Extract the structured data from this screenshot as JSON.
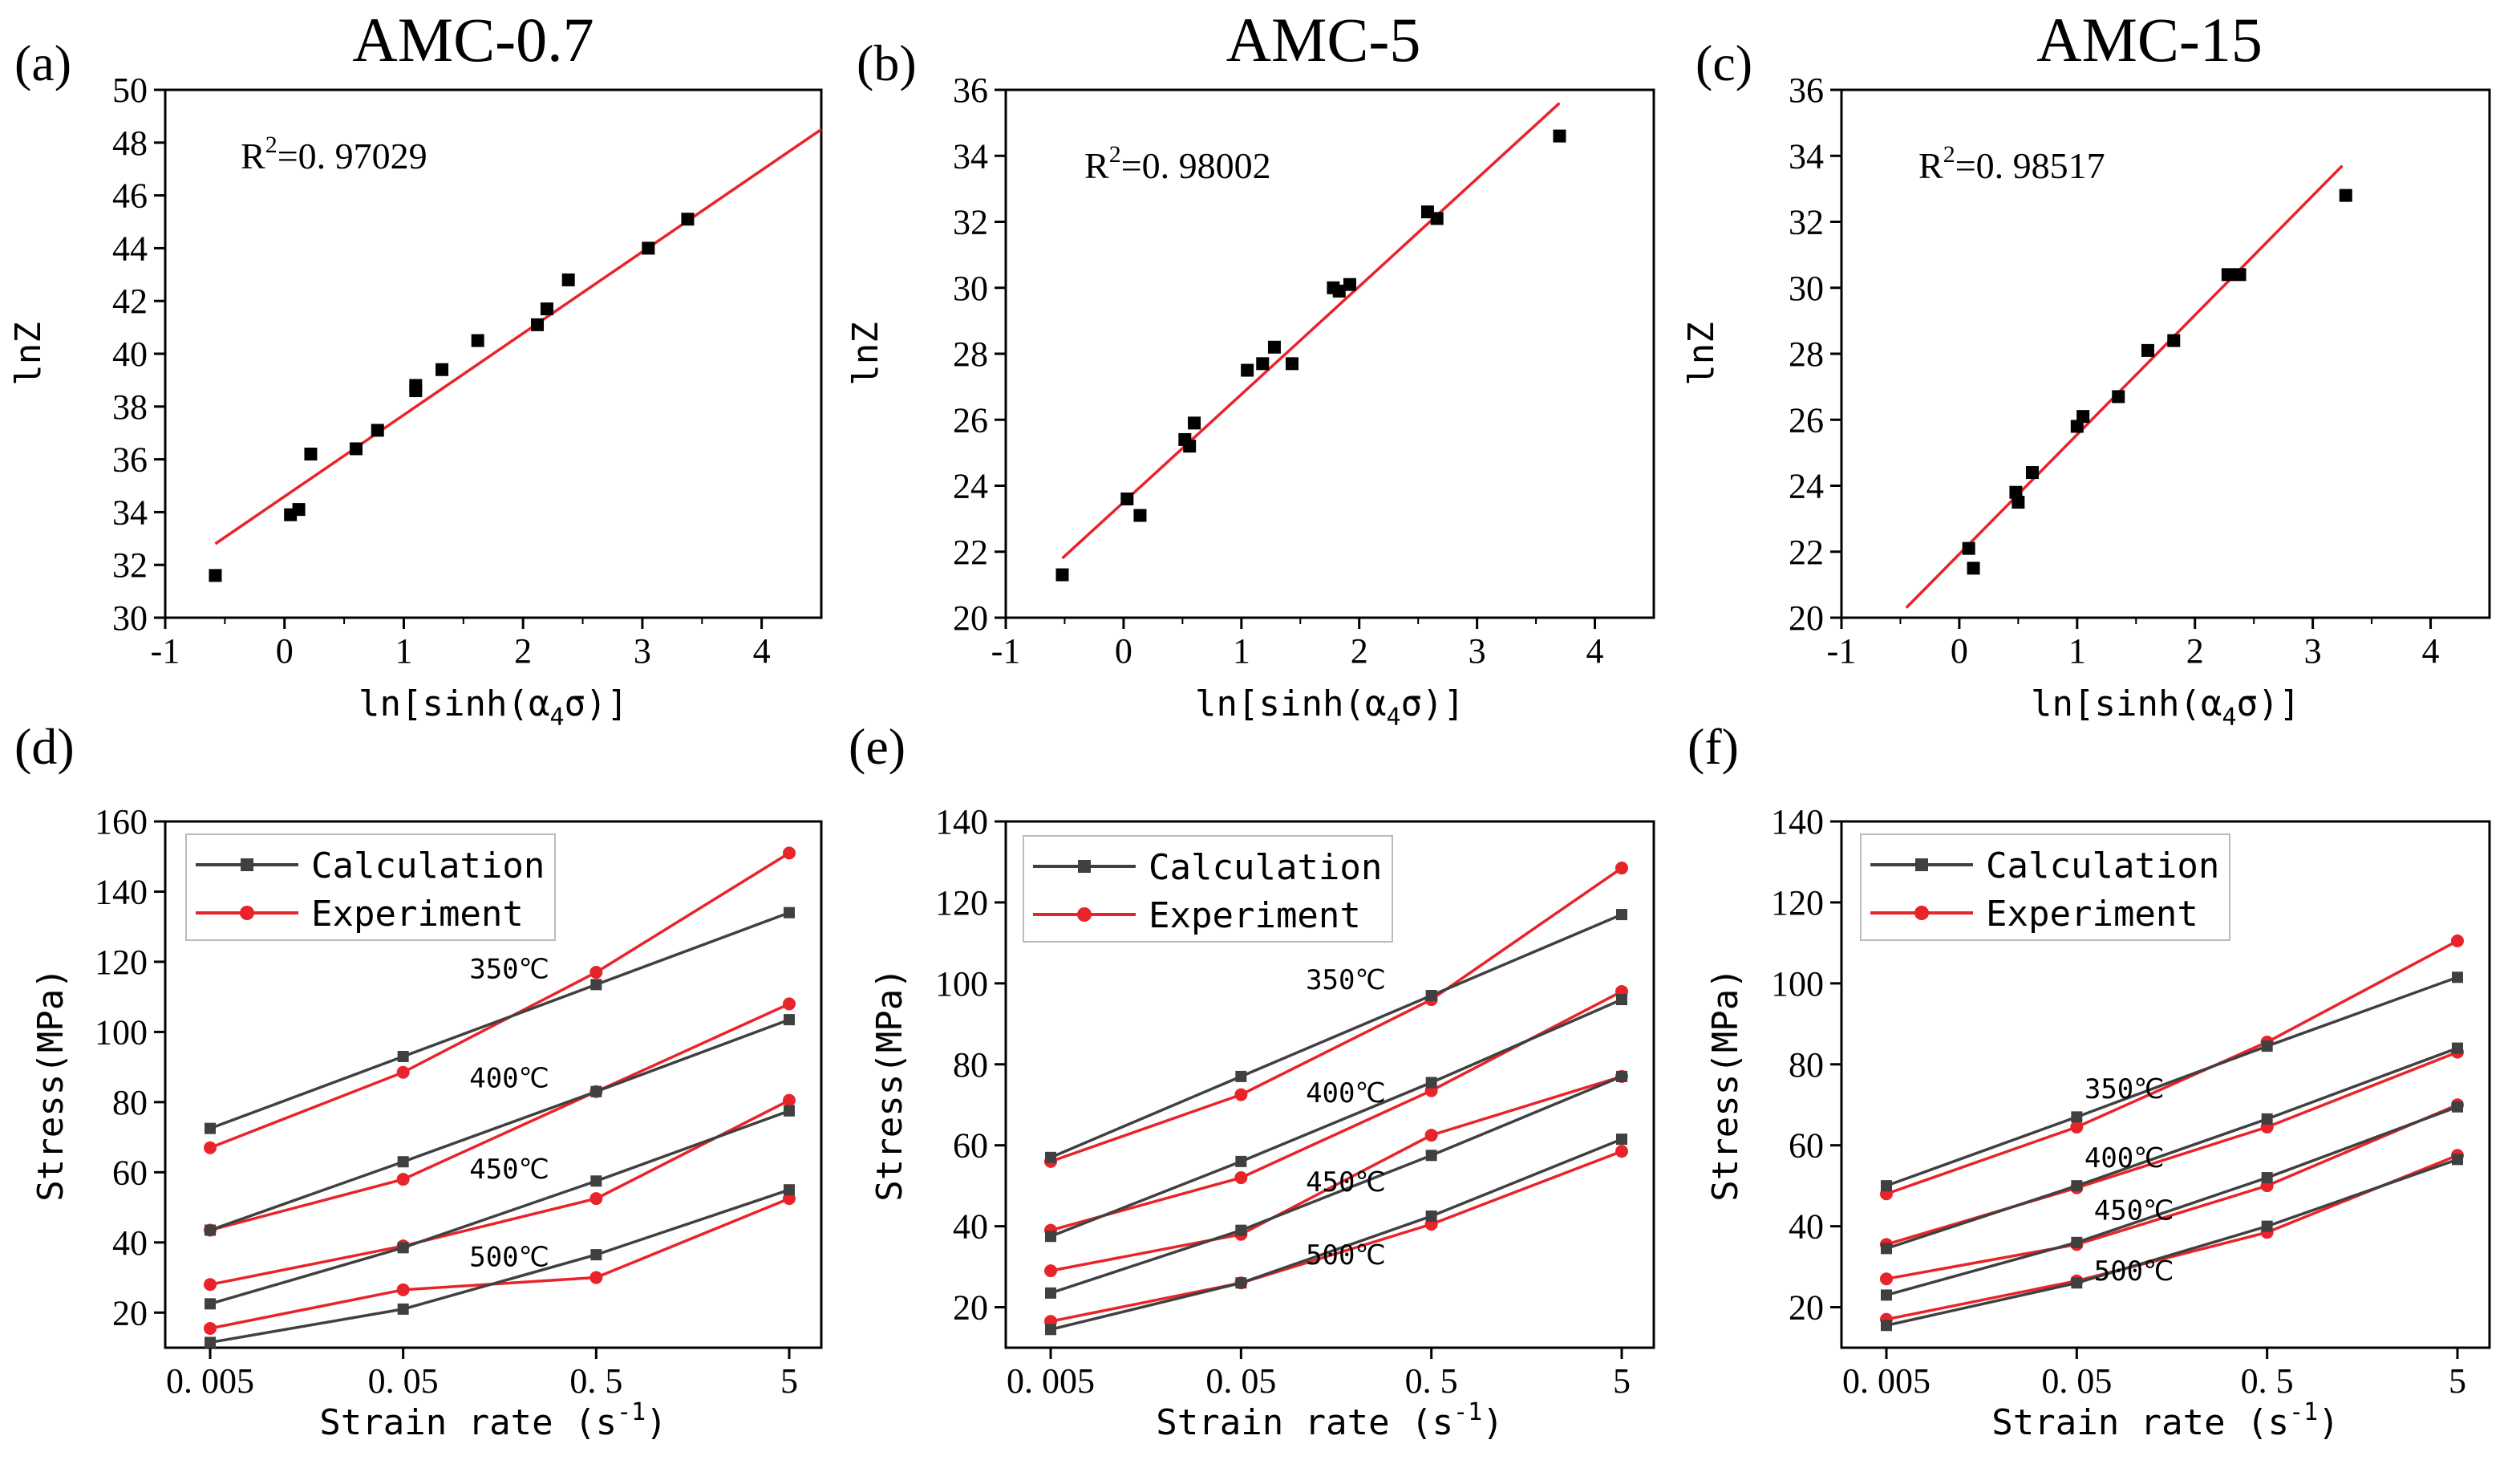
{
  "colors": {
    "fit": "#e8242a",
    "calc": "#404040",
    "exp": "#e8242a",
    "point": "#000000"
  },
  "chart_data": [
    {
      "id": "a",
      "panel": "(a)",
      "title": "AMC-0.7",
      "type": "scatter",
      "xlabel": "ln[sinh(α",
      "xlabel_sub": "4",
      "xlabel_end": "σ)]",
      "ylabel": "lnZ",
      "xlim": [
        -1,
        4.5
      ],
      "ylim": [
        30,
        50
      ],
      "xticks": [
        -1,
        0,
        1,
        2,
        3,
        4
      ],
      "yticks": [
        30,
        32,
        34,
        36,
        38,
        40,
        42,
        44,
        46,
        48,
        50
      ],
      "r2_prefix": "R",
      "r2_sup": "2",
      "r2_value": "=0. 97029",
      "points": [
        [
          -0.58,
          31.6
        ],
        [
          0.05,
          33.9
        ],
        [
          0.12,
          34.1
        ],
        [
          0.22,
          36.2
        ],
        [
          0.6,
          36.4
        ],
        [
          0.78,
          37.1
        ],
        [
          1.1,
          38.6
        ],
        [
          1.1,
          38.8
        ],
        [
          1.32,
          39.4
        ],
        [
          1.62,
          40.5
        ],
        [
          2.12,
          41.1
        ],
        [
          2.2,
          41.7
        ],
        [
          2.38,
          42.8
        ],
        [
          3.05,
          44.0
        ],
        [
          3.38,
          45.1
        ]
      ],
      "fit": {
        "x0": -0.58,
        "y0": 32.8,
        "x1": 4.5,
        "y1": 48.5
      }
    },
    {
      "id": "b",
      "panel": "(b)",
      "title": "AMC-5",
      "type": "scatter",
      "xlabel": "ln[sinh(α",
      "xlabel_sub": "4",
      "xlabel_end": "σ)]",
      "ylabel": "lnZ",
      "xlim": [
        -1,
        4.5
      ],
      "ylim": [
        20,
        36
      ],
      "xticks": [
        -1,
        0,
        1,
        2,
        3,
        4
      ],
      "yticks": [
        20,
        22,
        24,
        26,
        28,
        30,
        32,
        34,
        36
      ],
      "r2_prefix": "R",
      "r2_sup": "2",
      "r2_value": "=0. 98002",
      "points": [
        [
          -0.52,
          21.3
        ],
        [
          0.03,
          23.6
        ],
        [
          0.14,
          23.1
        ],
        [
          0.52,
          25.4
        ],
        [
          0.56,
          25.2
        ],
        [
          0.6,
          25.9
        ],
        [
          1.05,
          27.5
        ],
        [
          1.18,
          27.7
        ],
        [
          1.28,
          28.2
        ],
        [
          1.43,
          27.7
        ],
        [
          1.78,
          30.0
        ],
        [
          1.83,
          29.9
        ],
        [
          1.92,
          30.1
        ],
        [
          2.58,
          32.3
        ],
        [
          2.66,
          32.1
        ],
        [
          3.7,
          34.6
        ]
      ],
      "fit": {
        "x0": -0.52,
        "y0": 21.8,
        "x1": 3.7,
        "y1": 35.6
      }
    },
    {
      "id": "c",
      "panel": "(c)",
      "title": "AMC-15",
      "type": "scatter",
      "xlabel": "ln[sinh(α",
      "xlabel_sub": "4",
      "xlabel_end": "σ)]",
      "ylabel": "lnZ",
      "xlim": [
        -1,
        4.5
      ],
      "ylim": [
        20,
        36
      ],
      "xticks": [
        -1,
        0,
        1,
        2,
        3,
        4
      ],
      "yticks": [
        20,
        22,
        24,
        26,
        28,
        30,
        32,
        34,
        36
      ],
      "r2_prefix": "R",
      "r2_sup": "2",
      "r2_value": "=0. 98517",
      "points": [
        [
          0.08,
          22.1
        ],
        [
          0.12,
          21.5
        ],
        [
          0.48,
          23.8
        ],
        [
          0.5,
          23.5
        ],
        [
          0.62,
          24.4
        ],
        [
          1.0,
          25.8
        ],
        [
          1.05,
          26.1
        ],
        [
          1.35,
          26.7
        ],
        [
          1.6,
          28.1
        ],
        [
          1.82,
          28.4
        ],
        [
          2.28,
          30.4
        ],
        [
          2.38,
          30.4
        ],
        [
          3.28,
          32.8
        ]
      ],
      "fit": {
        "x0": -0.45,
        "y0": 20.3,
        "x1": 3.25,
        "y1": 33.7
      }
    },
    {
      "id": "d",
      "panel": "(d)",
      "type": "line",
      "xlabel": "Strain rate (s",
      "xlabel_sup": "-1",
      "xlabel_end": ")",
      "ylabel": "Stress(MPa)",
      "categories": [
        "0. 005",
        "0. 05",
        "0. 5",
        "5"
      ],
      "ylim": [
        10,
        160
      ],
      "yticks": [
        20,
        40,
        60,
        80,
        100,
        120,
        140,
        160
      ],
      "legend": {
        "calc": "Calculation",
        "exp": "Experiment"
      },
      "temperatures": [
        {
          "label": "350℃",
          "calc": [
            72.5,
            93,
            113.5,
            134
          ],
          "exp": [
            67,
            88.5,
            117,
            151
          ],
          "label_x": 1.55,
          "label_y": 118
        },
        {
          "label": "400℃",
          "calc": [
            43.5,
            63,
            83,
            103.5
          ],
          "exp": [
            43.5,
            58,
            83,
            108
          ],
          "label_x": 1.55,
          "label_y": 87
        },
        {
          "label": "450℃",
          "calc": [
            22.5,
            38.5,
            57.5,
            77.5
          ],
          "exp": [
            28,
            39,
            52.5,
            80.5
          ],
          "label_x": 1.55,
          "label_y": 61
        },
        {
          "label": "500℃",
          "calc": [
            11.5,
            21,
            36.5,
            55
          ],
          "exp": [
            15.5,
            26.5,
            30,
            52.5
          ],
          "label_x": 1.55,
          "label_y": 36
        }
      ]
    },
    {
      "id": "e",
      "panel": "(e)",
      "type": "line",
      "xlabel": "Strain rate (s",
      "xlabel_sup": "-1",
      "xlabel_end": ")",
      "ylabel": "Stress(MPa)",
      "categories": [
        "0. 005",
        "0. 05",
        "0. 5",
        "5"
      ],
      "ylim": [
        10,
        140
      ],
      "yticks": [
        20,
        40,
        60,
        80,
        100,
        120,
        140
      ],
      "legend": {
        "calc": "Calculation",
        "exp": "Experiment"
      },
      "temperatures": [
        {
          "label": "350℃",
          "calc": [
            57,
            77,
            97,
            117
          ],
          "exp": [
            56,
            72.5,
            96,
            128.5
          ],
          "label_x": 1.55,
          "label_y": 101
        },
        {
          "label": "400℃",
          "calc": [
            37.5,
            56,
            75.5,
            96
          ],
          "exp": [
            39,
            52,
            73.5,
            98
          ],
          "label_x": 1.55,
          "label_y": 73
        },
        {
          "label": "450℃",
          "calc": [
            23.5,
            39,
            57.5,
            77
          ],
          "exp": [
            29,
            38,
            62.5,
            77
          ],
          "label_x": 1.55,
          "label_y": 51
        },
        {
          "label": "500℃",
          "calc": [
            14.5,
            26,
            42.5,
            61.5
          ],
          "exp": [
            16.5,
            26,
            40.5,
            58.5
          ],
          "label_x": 1.55,
          "label_y": 33
        }
      ]
    },
    {
      "id": "f",
      "panel": "(f)",
      "type": "line",
      "xlabel": "Strain rate (s",
      "xlabel_sup": "-1",
      "xlabel_end": ")",
      "ylabel": "Stress(MPa)",
      "categories": [
        "0. 005",
        "0. 05",
        "0. 5",
        "5"
      ],
      "ylim": [
        10,
        140
      ],
      "yticks": [
        20,
        40,
        60,
        80,
        100,
        120,
        140
      ],
      "legend": {
        "calc": "Calculation",
        "exp": "Experiment"
      },
      "temperatures": [
        {
          "label": "350℃",
          "calc": [
            50,
            67,
            84.5,
            101.5
          ],
          "exp": [
            48,
            64.5,
            85.5,
            110.5
          ],
          "label_x": 1.25,
          "label_y": 74
        },
        {
          "label": "400℃",
          "calc": [
            34.5,
            50,
            66.5,
            84
          ],
          "exp": [
            35.5,
            49.5,
            64.5,
            83
          ],
          "label_x": 1.25,
          "label_y": 57
        },
        {
          "label": "450℃",
          "calc": [
            23,
            36,
            52,
            69.5
          ],
          "exp": [
            27,
            35.5,
            50,
            70
          ],
          "label_x": 1.3,
          "label_y": 44
        },
        {
          "label": "500℃",
          "calc": [
            15.5,
            26,
            40,
            56.5
          ],
          "exp": [
            17,
            26.5,
            38.5,
            57.5
          ],
          "label_x": 1.3,
          "label_y": 29
        }
      ]
    }
  ]
}
